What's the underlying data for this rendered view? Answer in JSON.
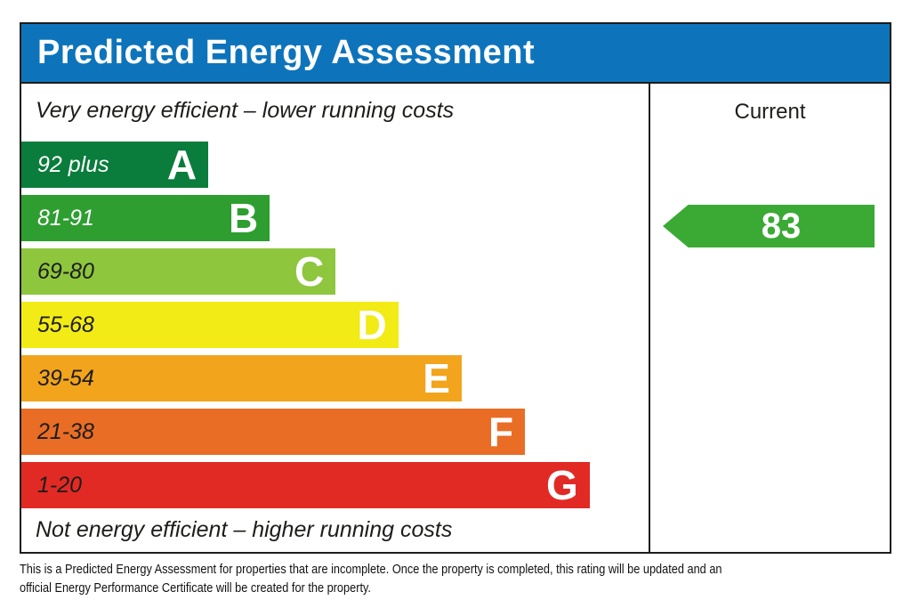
{
  "header": {
    "title": "Predicted Energy Assessment",
    "bg_color": "#0d74bc"
  },
  "chart": {
    "top_note": "Very energy efficient – lower running costs",
    "bottom_note": "Not energy efficient – higher running costs",
    "bands": [
      {
        "letter": "A",
        "range": "92 plus",
        "color": "#0a7c3c",
        "range_text_color": "#ffffff",
        "width_pct": 29.8
      },
      {
        "letter": "B",
        "range": "81-91",
        "color": "#2e9e30",
        "range_text_color": "#ffffff",
        "width_pct": 39.6
      },
      {
        "letter": "C",
        "range": "69-80",
        "color": "#8ec63e",
        "range_text_color": "#1d1d1b",
        "width_pct": 50.1
      },
      {
        "letter": "D",
        "range": "55-68",
        "color": "#f2eb16",
        "range_text_color": "#1d1d1b",
        "width_pct": 60.1
      },
      {
        "letter": "E",
        "range": "39-54",
        "color": "#f2a41c",
        "range_text_color": "#1d1d1b",
        "width_pct": 70.2
      },
      {
        "letter": "F",
        "range": "21-38",
        "color": "#e96d25",
        "range_text_color": "#1d1d1b",
        "width_pct": 80.3
      },
      {
        "letter": "G",
        "range": "1-20",
        "color": "#e22a25",
        "range_text_color": "#1d1d1b",
        "width_pct": 90.6
      }
    ]
  },
  "current": {
    "label": "Current",
    "value": "83",
    "arrow_color": "#3aaa35"
  },
  "footer": {
    "line1": "This is a Predicted Energy Assessment for properties that are incomplete. Once the property is completed, this rating will be updated and an",
    "line2": "official Energy Performance Certificate will be created for the property."
  },
  "chart_data": {
    "type": "bar",
    "title": "Predicted Energy Assessment",
    "orientation": "horizontal",
    "categories": [
      "A",
      "B",
      "C",
      "D",
      "E",
      "F",
      "G"
    ],
    "band_ranges": [
      "92 plus",
      "81-91",
      "69-80",
      "55-68",
      "39-54",
      "21-38",
      "1-20"
    ],
    "values": [
      29.8,
      39.6,
      50.1,
      60.1,
      70.2,
      80.3,
      90.6
    ],
    "value_unit": "relative bar width %",
    "band_colors": [
      "#0a7c3c",
      "#2e9e30",
      "#8ec63e",
      "#f2eb16",
      "#f2a41c",
      "#e96d25",
      "#e22a25"
    ],
    "current_rating": 83,
    "current_band": "B",
    "columns": [
      "Current"
    ],
    "annotations": [
      "Very energy efficient – lower running costs",
      "Not energy efficient – higher running costs"
    ],
    "grid": false,
    "legend": false
  }
}
